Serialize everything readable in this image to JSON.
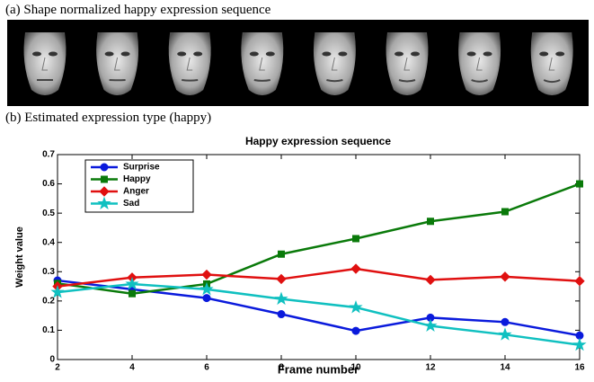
{
  "panels": [
    {
      "caption": "(a) Shape normalized happy expression sequence"
    },
    {
      "caption": "(b) Estimated expression type (happy)"
    }
  ],
  "chart_data": {
    "type": "line",
    "title": "Happy expression sequence",
    "xlabel": "Frame number",
    "ylabel": "Weight value",
    "x": [
      2,
      4,
      6,
      8,
      10,
      12,
      14,
      16
    ],
    "series": [
      {
        "name": "Surprise",
        "color": "#0a1adc",
        "marker": "circle",
        "values": [
          0.27,
          0.24,
          0.21,
          0.155,
          0.098,
          0.143,
          0.128,
          0.082
        ]
      },
      {
        "name": "Happy",
        "color": "#0a7a0a",
        "marker": "square",
        "values": [
          0.26,
          0.225,
          0.258,
          0.36,
          0.413,
          0.472,
          0.505,
          0.6
        ]
      },
      {
        "name": "Anger",
        "color": "#e01010",
        "marker": "diamond",
        "values": [
          0.25,
          0.28,
          0.29,
          0.275,
          0.31,
          0.272,
          0.283,
          0.268
        ]
      },
      {
        "name": "Sad",
        "color": "#10c0c0",
        "marker": "star",
        "values": [
          0.23,
          0.258,
          0.24,
          0.207,
          0.178,
          0.115,
          0.085,
          0.05
        ]
      }
    ],
    "xlim": [
      2,
      16
    ],
    "xticks": [
      2,
      4,
      6,
      8,
      10,
      12,
      14,
      16
    ],
    "ylim": [
      0,
      0.7
    ],
    "yticks": [
      0,
      0.1,
      0.2,
      0.3,
      0.4,
      0.5,
      0.6,
      0.7
    ],
    "legend": "upper-left"
  }
}
